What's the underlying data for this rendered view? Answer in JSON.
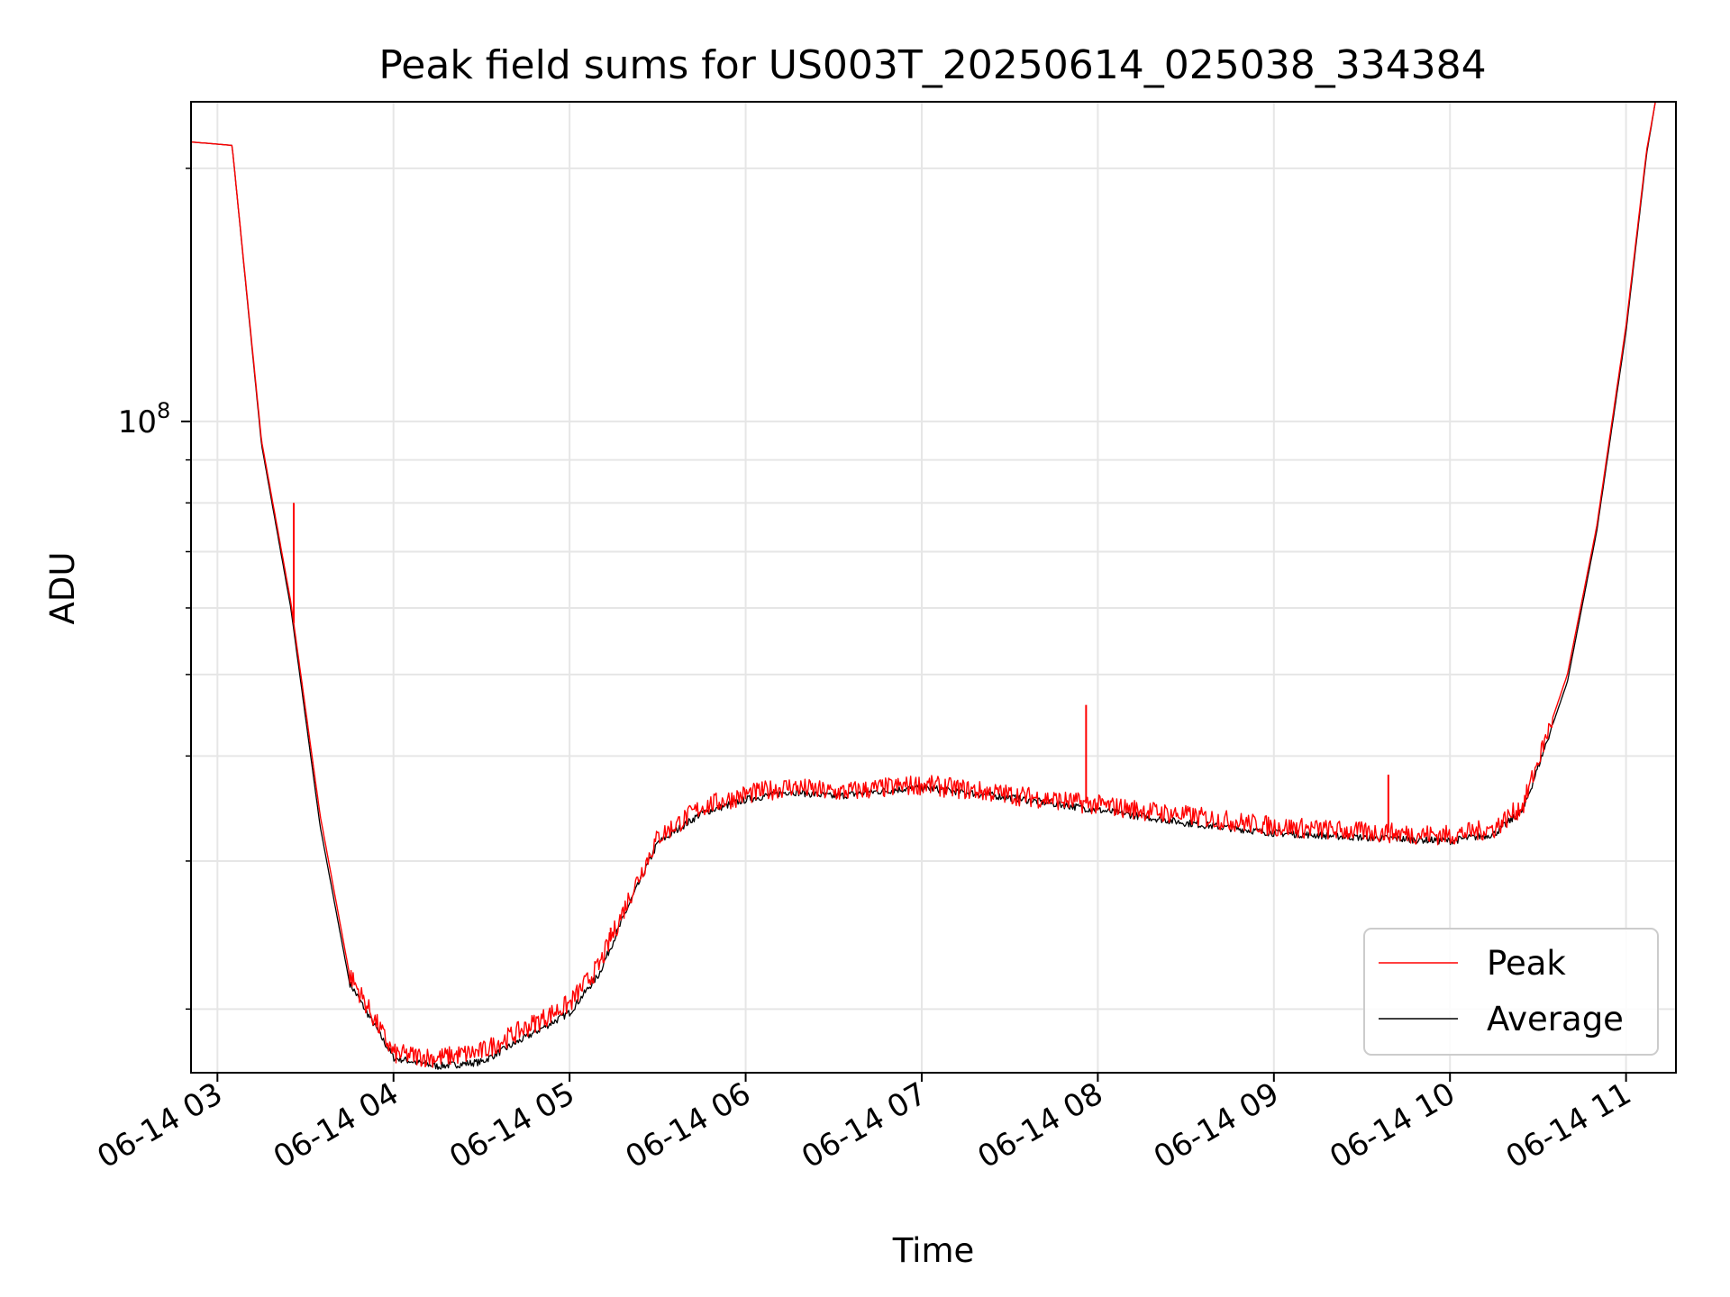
{
  "chart_data": {
    "type": "line",
    "title": "Peak field sums for US003T_20250614_025038_334384",
    "xlabel": "Time",
    "ylabel": "ADU",
    "yscale": "log",
    "ylim": [
      16800000,
      240000000
    ],
    "xlim": [
      "06-14 02:51",
      "06-14 11:17"
    ],
    "grid": true,
    "legend_position": "lower right",
    "x_ticks": [
      "06-14 03",
      "06-14 04",
      "06-14 05",
      "06-14 06",
      "06-14 07",
      "06-14 08",
      "06-14 09",
      "06-14 10",
      "06-14 11"
    ],
    "y_ticks": [
      {
        "label_base": "10",
        "label_exp": "8",
        "value": 100000000
      }
    ],
    "x": [
      "06-14 02:51",
      "06-14 03:05",
      "06-14 03:15",
      "06-14 03:25",
      "06-14 03:35",
      "06-14 03:45",
      "06-14 04:00",
      "06-14 04:15",
      "06-14 04:30",
      "06-14 04:45",
      "06-14 05:00",
      "06-14 05:10",
      "06-14 05:20",
      "06-14 05:30",
      "06-14 05:45",
      "06-14 06:00",
      "06-14 06:15",
      "06-14 06:30",
      "06-14 06:45",
      "06-14 07:00",
      "06-14 07:30",
      "06-14 08:00",
      "06-14 08:30",
      "06-14 09:00",
      "06-14 09:30",
      "06-14 10:00",
      "06-14 10:15",
      "06-14 10:25",
      "06-14 10:40",
      "06-14 10:50",
      "06-14 11:00",
      "06-14 11:07",
      "06-14 11:10"
    ],
    "series": [
      {
        "name": "Peak",
        "color": "#ff0000",
        "values": [
          215000000,
          213000000,
          95000000,
          61000000,
          34000000,
          22000000,
          17700000,
          17500000,
          17800000,
          19000000,
          20300000,
          22500000,
          27000000,
          32000000,
          34800000,
          36000000,
          36800000,
          36200000,
          36600000,
          37000000,
          36000000,
          35000000,
          34000000,
          33000000,
          32500000,
          32200000,
          32800000,
          35000000,
          50000000,
          75000000,
          130000000,
          210000000,
          240000000
        ],
        "spikes": [
          {
            "x": "06-14 03:26",
            "y": 80000000
          },
          {
            "x": "06-14 05:14",
            "y": 25000000
          },
          {
            "x": "06-14 07:56",
            "y": 46000000
          },
          {
            "x": "06-14 09:39",
            "y": 38000000
          }
        ]
      },
      {
        "name": "Average",
        "color": "#000000",
        "values": [
          215000000,
          213000000,
          94000000,
          60000000,
          33000000,
          21500000,
          17500000,
          17100000,
          17300000,
          18500000,
          19800000,
          22000000,
          26500000,
          31500000,
          34200000,
          35500000,
          36300000,
          35800000,
          36300000,
          36700000,
          35700000,
          34500000,
          33300000,
          32400000,
          32000000,
          31700000,
          32300000,
          34500000,
          49000000,
          74000000,
          128000000,
          208000000,
          240000000
        ]
      }
    ]
  }
}
